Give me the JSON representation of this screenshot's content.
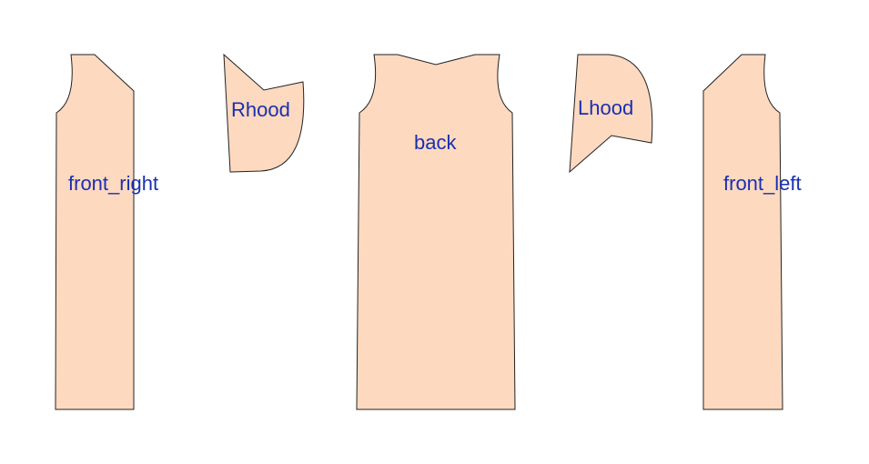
{
  "colors": {
    "piece_fill": "#fdd9c0",
    "piece_stroke": "#222222",
    "label_text": "#1a2fb0",
    "background": "#ffffff"
  },
  "pieces": [
    {
      "id": "front_right",
      "label": "front_right"
    },
    {
      "id": "Rhood",
      "label": "Rhood"
    },
    {
      "id": "back",
      "label": "back"
    },
    {
      "id": "Lhood",
      "label": "Lhood"
    },
    {
      "id": "front_left",
      "label": "front_left"
    }
  ]
}
